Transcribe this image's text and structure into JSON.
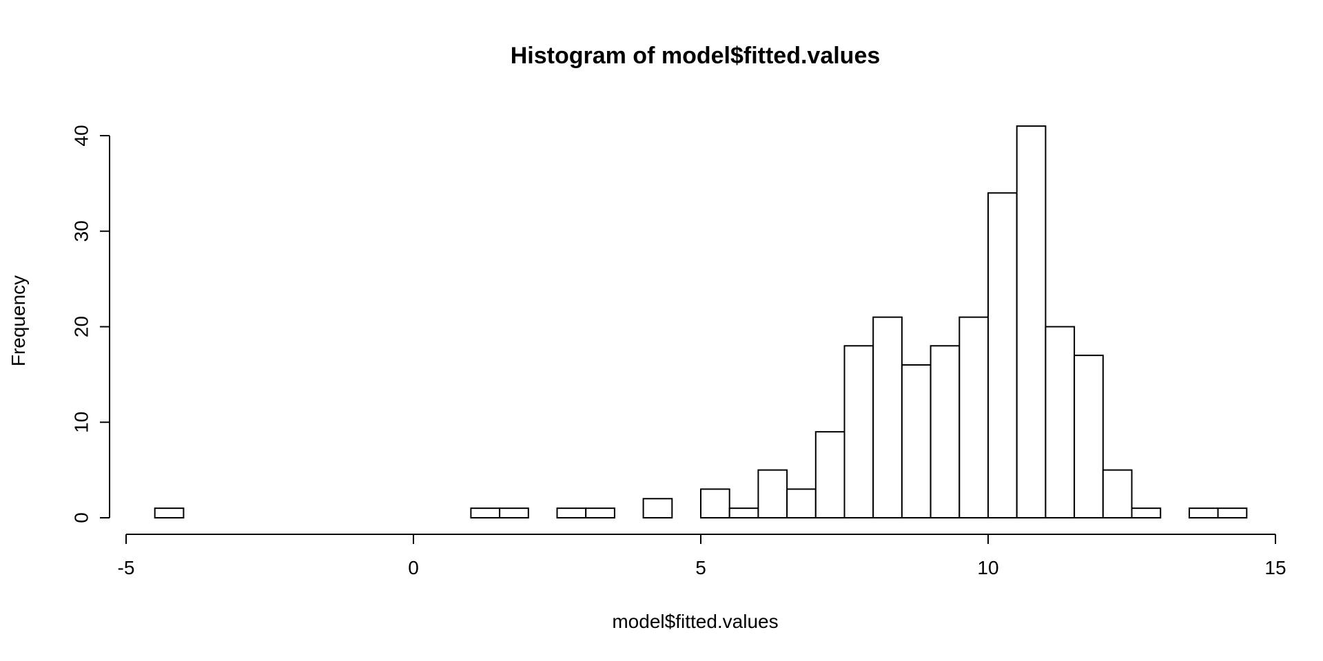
{
  "chart_data": {
    "type": "bar",
    "title": "Histogram of model$fitted.values",
    "xlabel": "model$fitted.values",
    "ylabel": "Frequency",
    "xlim": [
      -5,
      15
    ],
    "ylim": [
      0,
      40
    ],
    "xticks": [
      -5,
      0,
      5,
      10,
      15
    ],
    "yticks": [
      0,
      10,
      20,
      30,
      40
    ],
    "bin_width": 0.5,
    "bins": [
      {
        "x0": -4.5,
        "x1": -4.0,
        "count": 1
      },
      {
        "x0": -4.0,
        "x1": -3.5,
        "count": 0
      },
      {
        "x0": -3.5,
        "x1": -3.0,
        "count": 0
      },
      {
        "x0": -3.0,
        "x1": -2.5,
        "count": 0
      },
      {
        "x0": -2.5,
        "x1": -2.0,
        "count": 0
      },
      {
        "x0": -2.0,
        "x1": -1.5,
        "count": 0
      },
      {
        "x0": -1.5,
        "x1": -1.0,
        "count": 0
      },
      {
        "x0": -1.0,
        "x1": -0.5,
        "count": 0
      },
      {
        "x0": -0.5,
        "x1": 0.0,
        "count": 0
      },
      {
        "x0": 0.0,
        "x1": 0.5,
        "count": 0
      },
      {
        "x0": 0.5,
        "x1": 1.0,
        "count": 0
      },
      {
        "x0": 1.0,
        "x1": 1.5,
        "count": 1
      },
      {
        "x0": 1.5,
        "x1": 2.0,
        "count": 1
      },
      {
        "x0": 2.0,
        "x1": 2.5,
        "count": 0
      },
      {
        "x0": 2.5,
        "x1": 3.0,
        "count": 1
      },
      {
        "x0": 3.0,
        "x1": 3.5,
        "count": 1
      },
      {
        "x0": 3.5,
        "x1": 4.0,
        "count": 0
      },
      {
        "x0": 4.0,
        "x1": 4.5,
        "count": 2
      },
      {
        "x0": 4.5,
        "x1": 5.0,
        "count": 0
      },
      {
        "x0": 5.0,
        "x1": 5.5,
        "count": 3
      },
      {
        "x0": 5.5,
        "x1": 6.0,
        "count": 1
      },
      {
        "x0": 6.0,
        "x1": 6.5,
        "count": 5
      },
      {
        "x0": 6.5,
        "x1": 7.0,
        "count": 3
      },
      {
        "x0": 7.0,
        "x1": 7.5,
        "count": 9
      },
      {
        "x0": 7.5,
        "x1": 8.0,
        "count": 18
      },
      {
        "x0": 8.0,
        "x1": 8.5,
        "count": 21
      },
      {
        "x0": 8.5,
        "x1": 9.0,
        "count": 16
      },
      {
        "x0": 9.0,
        "x1": 9.5,
        "count": 18
      },
      {
        "x0": 9.5,
        "x1": 10.0,
        "count": 21
      },
      {
        "x0": 10.0,
        "x1": 10.5,
        "count": 34
      },
      {
        "x0": 10.5,
        "x1": 11.0,
        "count": 41
      },
      {
        "x0": 11.0,
        "x1": 11.5,
        "count": 20
      },
      {
        "x0": 11.5,
        "x1": 12.0,
        "count": 17
      },
      {
        "x0": 12.0,
        "x1": 12.5,
        "count": 5
      },
      {
        "x0": 12.5,
        "x1": 13.0,
        "count": 1
      },
      {
        "x0": 13.0,
        "x1": 13.5,
        "count": 0
      },
      {
        "x0": 13.5,
        "x1": 14.0,
        "count": 1
      },
      {
        "x0": 14.0,
        "x1": 14.5,
        "count": 1
      }
    ],
    "bar_fill": "#ffffff",
    "bar_stroke": "#000000",
    "grid": false,
    "legend": "none"
  }
}
